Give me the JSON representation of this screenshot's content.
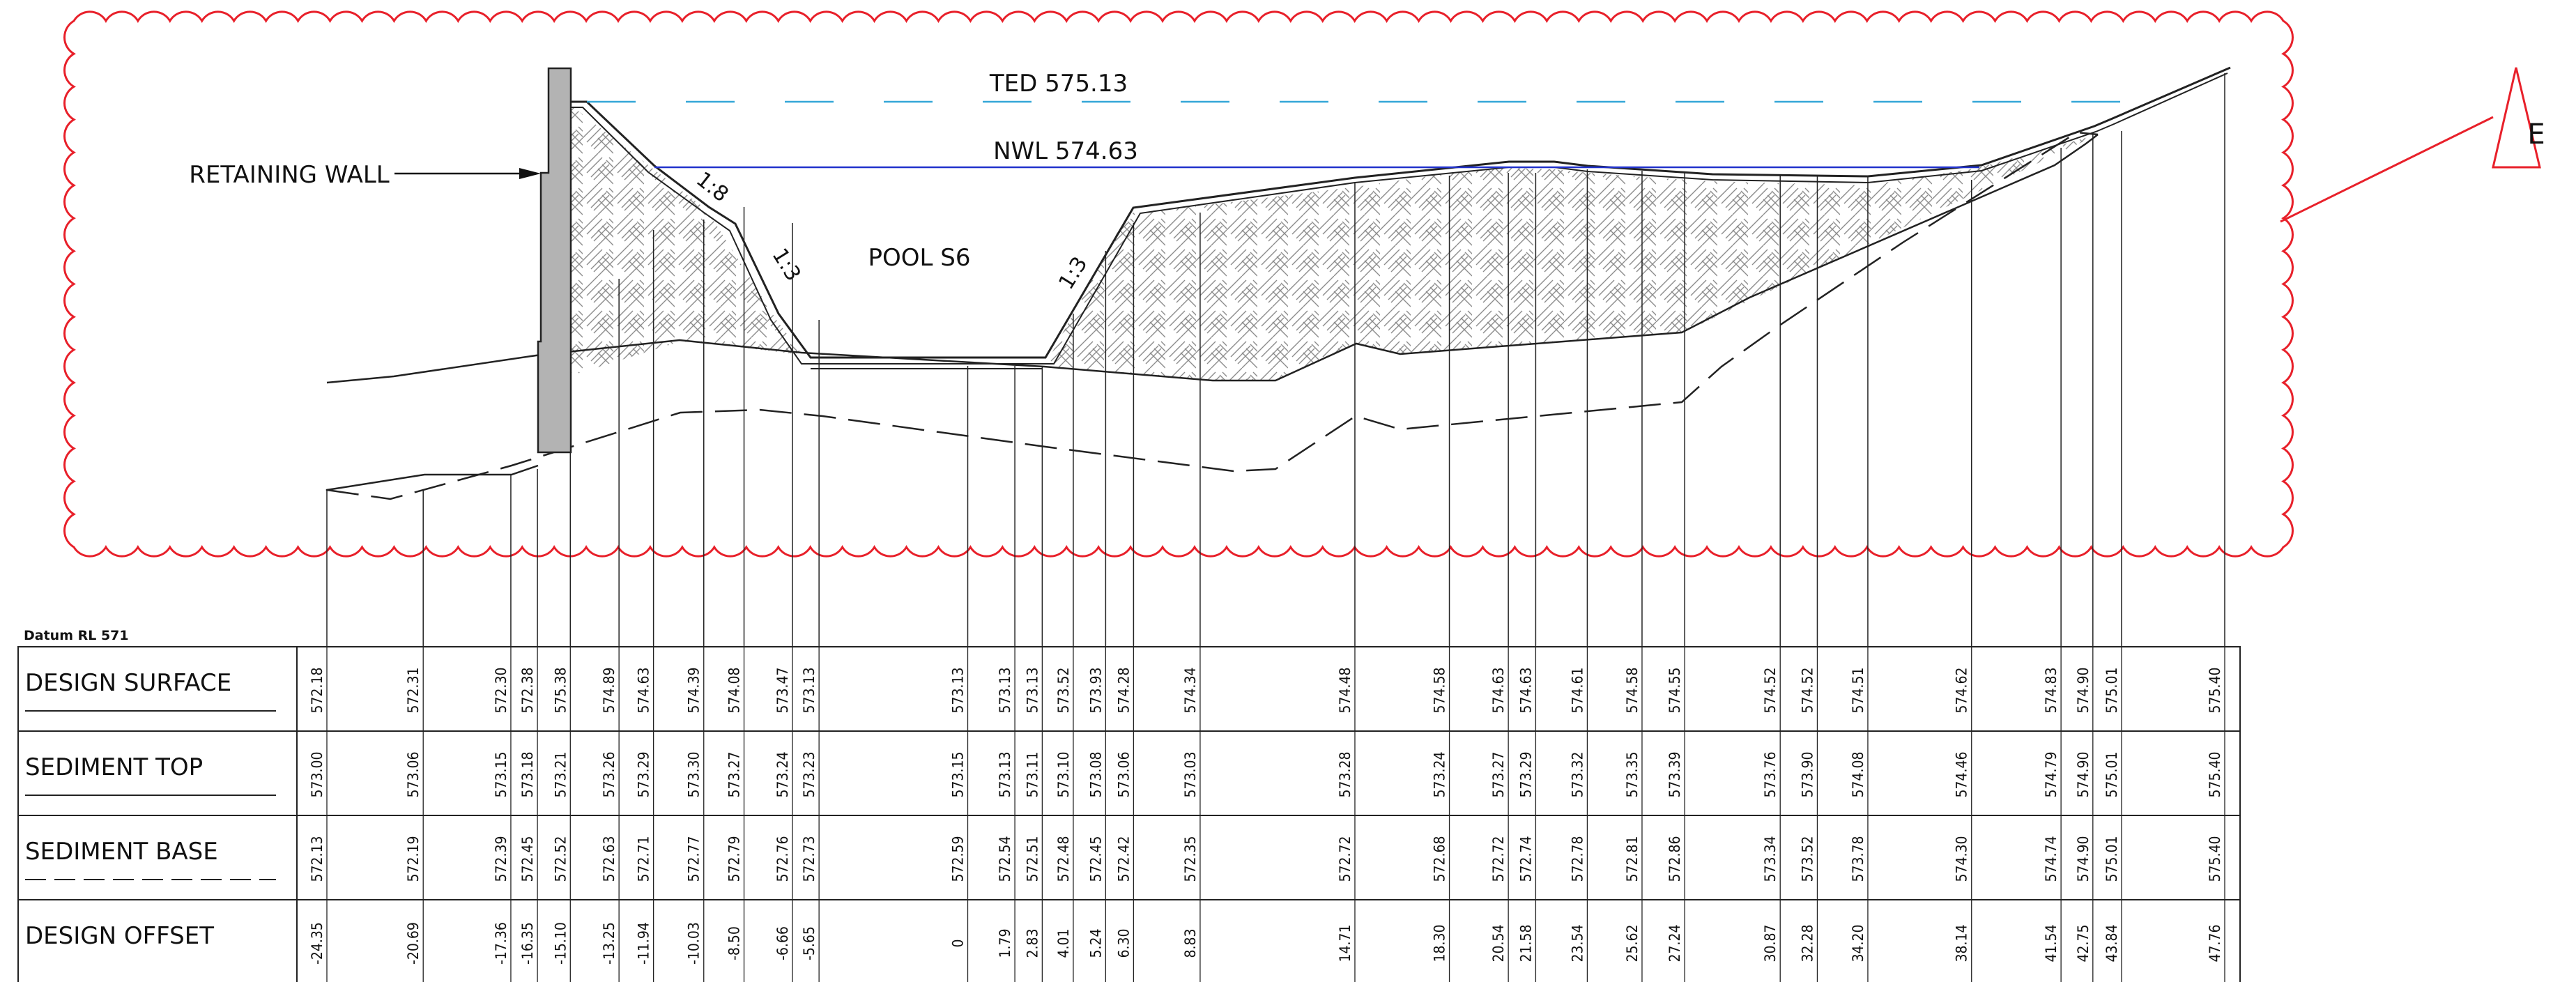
{
  "labels": {
    "ted": "TED 575.13",
    "nwl": "NWL 574.63",
    "retaining_wall": "RETAINING WALL",
    "pool": "POOL S6",
    "slope_left_upper": "1:8",
    "slope_left_lower": "1:3",
    "slope_right": "1:3",
    "revision_mark": "E",
    "datum": "Datum RL 571"
  },
  "colors": {
    "revision_cloud": "#e8202a",
    "ted_line": "#35a7d8",
    "nwl_line": "#2233cc",
    "retaining_wall_fill": "#b3b3b3",
    "linework": "#222222"
  },
  "table": {
    "rows": [
      {
        "key": "design_surface",
        "label": "DESIGN SURFACE",
        "line_style": "solid"
      },
      {
        "key": "sediment_top",
        "label": "SEDIMENT TOP",
        "line_style": "solid"
      },
      {
        "key": "sediment_base",
        "label": "SEDIMENT BASE",
        "line_style": "dashed"
      },
      {
        "key": "design_offset",
        "label": "DESIGN OFFSET",
        "line_style": "none"
      }
    ],
    "columns": [
      {
        "design_surface": "572.18",
        "sediment_top": "573.00",
        "sediment_base": "572.13",
        "design_offset": "-24.35"
      },
      {
        "design_surface": "572.31",
        "sediment_top": "573.06",
        "sediment_base": "572.19",
        "design_offset": "-20.69"
      },
      {
        "design_surface": "572.30",
        "sediment_top": "573.15",
        "sediment_base": "572.39",
        "design_offset": "-17.36"
      },
      {
        "design_surface": "572.38",
        "sediment_top": "573.18",
        "sediment_base": "572.45",
        "design_offset": "-16.35"
      },
      {
        "design_surface": "575.38",
        "sediment_top": "573.21",
        "sediment_base": "572.52",
        "design_offset": "-15.10"
      },
      {
        "design_surface": "574.89",
        "sediment_top": "573.26",
        "sediment_base": "572.63",
        "design_offset": "-13.25"
      },
      {
        "design_surface": "574.63",
        "sediment_top": "573.29",
        "sediment_base": "572.71",
        "design_offset": "-11.94"
      },
      {
        "design_surface": "574.39",
        "sediment_top": "573.30",
        "sediment_base": "572.77",
        "design_offset": "-10.03"
      },
      {
        "design_surface": "574.08",
        "sediment_top": "573.27",
        "sediment_base": "572.79",
        "design_offset": "-8.50"
      },
      {
        "design_surface": "573.47",
        "sediment_top": "573.24",
        "sediment_base": "572.76",
        "design_offset": "-6.66"
      },
      {
        "design_surface": "573.13",
        "sediment_top": "573.23",
        "sediment_base": "572.73",
        "design_offset": "-5.65"
      },
      {
        "design_surface": "573.13",
        "sediment_top": "573.15",
        "sediment_base": "572.59",
        "design_offset": "0"
      },
      {
        "design_surface": "573.13",
        "sediment_top": "573.13",
        "sediment_base": "572.54",
        "design_offset": "1.79"
      },
      {
        "design_surface": "573.13",
        "sediment_top": "573.11",
        "sediment_base": "572.51",
        "design_offset": "2.83"
      },
      {
        "design_surface": "573.52",
        "sediment_top": "573.10",
        "sediment_base": "572.48",
        "design_offset": "4.01"
      },
      {
        "design_surface": "573.93",
        "sediment_top": "573.08",
        "sediment_base": "572.45",
        "design_offset": "5.24"
      },
      {
        "design_surface": "574.28",
        "sediment_top": "573.06",
        "sediment_base": "572.42",
        "design_offset": "6.30"
      },
      {
        "design_surface": "574.34",
        "sediment_top": "573.03",
        "sediment_base": "572.35",
        "design_offset": "8.83"
      },
      {
        "design_surface": "574.48",
        "sediment_top": "573.28",
        "sediment_base": "572.72",
        "design_offset": "14.71"
      },
      {
        "design_surface": "574.58",
        "sediment_top": "573.24",
        "sediment_base": "572.68",
        "design_offset": "18.30"
      },
      {
        "design_surface": "574.63",
        "sediment_top": "573.27",
        "sediment_base": "572.72",
        "design_offset": "20.54"
      },
      {
        "design_surface": "574.63",
        "sediment_top": "573.29",
        "sediment_base": "572.74",
        "design_offset": "21.58"
      },
      {
        "design_surface": "574.61",
        "sediment_top": "573.32",
        "sediment_base": "572.78",
        "design_offset": "23.54"
      },
      {
        "design_surface": "574.58",
        "sediment_top": "573.35",
        "sediment_base": "572.81",
        "design_offset": "25.62"
      },
      {
        "design_surface": "574.55",
        "sediment_top": "573.39",
        "sediment_base": "572.86",
        "design_offset": "27.24"
      },
      {
        "design_surface": "574.52",
        "sediment_top": "573.76",
        "sediment_base": "573.34",
        "design_offset": "30.87"
      },
      {
        "design_surface": "574.52",
        "sediment_top": "573.90",
        "sediment_base": "573.52",
        "design_offset": "32.28"
      },
      {
        "design_surface": "574.51",
        "sediment_top": "574.08",
        "sediment_base": "573.78",
        "design_offset": "34.20"
      },
      {
        "design_surface": "574.62",
        "sediment_top": "574.46",
        "sediment_base": "574.30",
        "design_offset": "38.14"
      },
      {
        "design_surface": "574.83",
        "sediment_top": "574.79",
        "sediment_base": "574.74",
        "design_offset": "41.54"
      },
      {
        "design_surface": "574.90",
        "sediment_top": "574.90",
        "sediment_base": "574.90",
        "design_offset": "42.75"
      },
      {
        "design_surface": "575.01",
        "sediment_top": "575.01",
        "sediment_base": "575.01",
        "design_offset": "43.84"
      },
      {
        "design_surface": "575.40",
        "sediment_top": "575.40",
        "sediment_base": "575.40",
        "design_offset": "47.76"
      }
    ]
  }
}
